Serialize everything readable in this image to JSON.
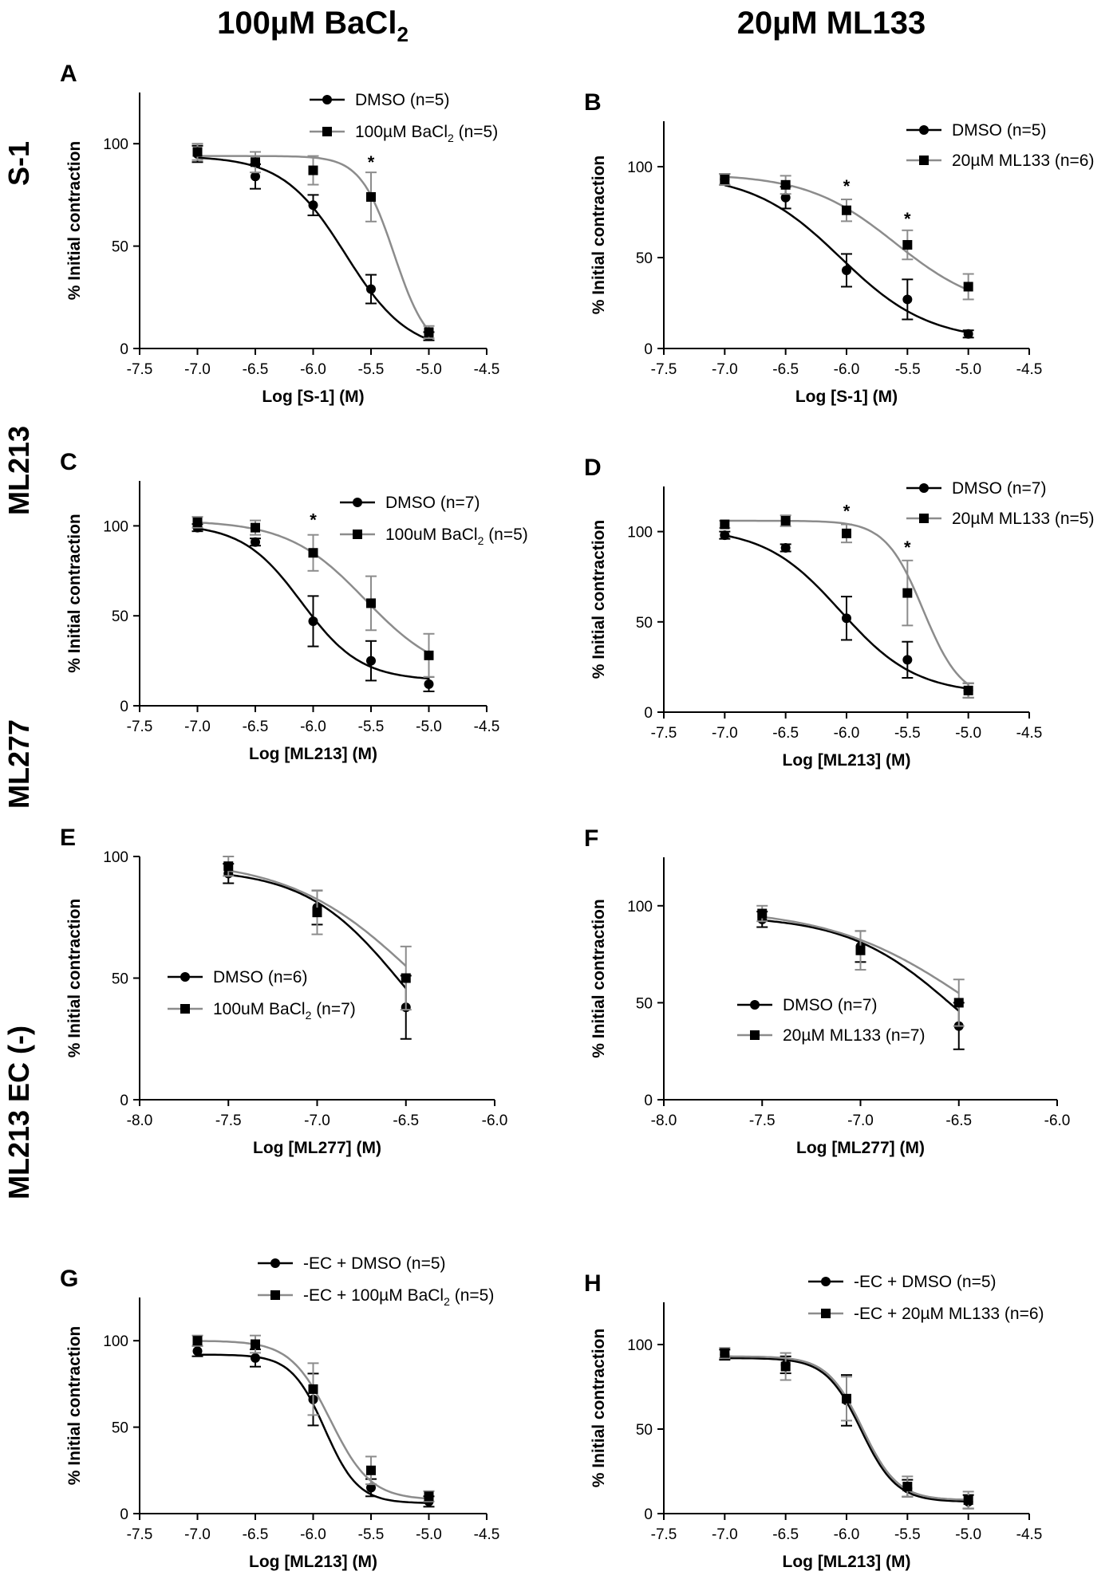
{
  "figure": {
    "col_headers": [
      {
        "text": "100µM BaCl",
        "sub": "2"
      },
      {
        "text": "20µM ML133",
        "sub": ""
      }
    ],
    "row_labels": [
      "S-1",
      "ML213",
      "ML277",
      "ML213 EC (-)"
    ],
    "colors": {
      "dmso": "#000000",
      "treat": "#8c8c8c"
    }
  },
  "chart_data": [
    {
      "panel": "A",
      "type": "line",
      "xlabel": "Log [S-1] (M)",
      "ylabel": "% Initial contraction",
      "xlim": [
        -7.5,
        -4.5
      ],
      "ylim": [
        0,
        125
      ],
      "xticks": [
        "-7.5",
        "-7.0",
        "-6.5",
        "-6.0",
        "-5.5",
        "-5.0",
        "-4.5"
      ],
      "yticks": [
        "0",
        "50",
        "100"
      ],
      "legend_position": "top-right",
      "series": [
        {
          "name": "DMSO (n=5)",
          "sub_at": null,
          "sub": "",
          "style": "dmso",
          "marker": "circle",
          "x": [
            -7.0,
            -6.5,
            -6.0,
            -5.5,
            -5.0
          ],
          "y": [
            95,
            84,
            70,
            29,
            6
          ],
          "err": [
            4,
            6,
            5,
            7,
            2
          ],
          "fit": {
            "top": 94,
            "bottom": -2,
            "logec50": -5.72,
            "hill": -1.6
          }
        },
        {
          "name": "100µM BaCl (n=5)",
          "sub_at": 10,
          "sub": "2",
          "style": "treat",
          "marker": "square",
          "x": [
            -7.0,
            -6.5,
            -6.0,
            -5.5,
            -5.0
          ],
          "y": [
            96,
            91,
            87,
            74,
            8
          ],
          "err": [
            4,
            5,
            7,
            12,
            3
          ],
          "fit": {
            "top": 94,
            "bottom": -2,
            "logec50": -5.3,
            "hill": -3.0
          }
        }
      ],
      "annotations": [
        {
          "x": -5.5,
          "y": 88,
          "text": "*"
        }
      ]
    },
    {
      "panel": "B",
      "type": "line",
      "xlabel": "Log [S-1] (M)",
      "ylabel": "% Initial contraction",
      "xlim": [
        -7.5,
        -4.5
      ],
      "ylim": [
        0,
        125
      ],
      "xticks": [
        "-7.5",
        "-7.0",
        "-6.5",
        "-6.0",
        "-5.5",
        "-5.0",
        "-4.5"
      ],
      "yticks": [
        "0",
        "50",
        "100"
      ],
      "legend_position": "top-right",
      "series": [
        {
          "name": "DMSO (n=5)",
          "sub_at": null,
          "sub": "",
          "style": "dmso",
          "marker": "circle",
          "x": [
            -7.0,
            -6.5,
            -6.0,
            -5.5,
            -5.0
          ],
          "y": [
            93,
            83,
            43,
            27,
            8
          ],
          "err": [
            3,
            6,
            9,
            11,
            2
          ],
          "fit": {
            "top": 96,
            "bottom": 4,
            "logec50": -6.05,
            "hill": -1.2
          }
        },
        {
          "name": "20µM ML133 (n=6)",
          "sub_at": null,
          "sub": "",
          "style": "treat",
          "marker": "square",
          "x": [
            -7.0,
            -6.5,
            -6.0,
            -5.5,
            -5.0
          ],
          "y": [
            93,
            90,
            76,
            57,
            34
          ],
          "err": [
            3,
            5,
            6,
            8,
            7
          ],
          "fit": {
            "top": 96,
            "bottom": 20,
            "logec50": -5.6,
            "hill": -1.2
          }
        }
      ],
      "annotations": [
        {
          "x": -6.0,
          "y": 86,
          "text": "*"
        },
        {
          "x": -5.5,
          "y": 68,
          "text": "*"
        }
      ]
    },
    {
      "panel": "C",
      "type": "line",
      "xlabel": "Log [ML213] (M)",
      "ylabel": "% Initial contraction",
      "xlim": [
        -7.5,
        -4.5
      ],
      "ylim": [
        0,
        125
      ],
      "xticks": [
        "-7.5",
        "-7.0",
        "-6.5",
        "-6.0",
        "-5.5",
        "-5.0",
        "-4.5"
      ],
      "yticks": [
        "0",
        "50",
        "100"
      ],
      "legend_position": "top-right",
      "series": [
        {
          "name": "DMSO (n=7)",
          "sub_at": null,
          "sub": "",
          "style": "dmso",
          "marker": "circle",
          "x": [
            -7.0,
            -6.5,
            -6.0,
            -5.5,
            -5.0
          ],
          "y": [
            99,
            91,
            47,
            25,
            12
          ],
          "err": [
            2,
            2,
            14,
            11,
            4
          ],
          "fit": {
            "top": 101,
            "bottom": 14,
            "logec50": -6.1,
            "hill": -1.7
          }
        },
        {
          "name": "100uM BaCl (n=5)",
          "sub_at": 10,
          "sub": "2",
          "style": "treat",
          "marker": "square",
          "x": [
            -7.0,
            -6.5,
            -6.0,
            -5.5,
            -5.0
          ],
          "y": [
            102,
            99,
            85,
            57,
            28
          ],
          "err": [
            3,
            4,
            10,
            15,
            12
          ],
          "fit": {
            "top": 103,
            "bottom": 15,
            "logec50": -5.55,
            "hill": -1.3
          }
        }
      ],
      "annotations": [
        {
          "x": -6.0,
          "y": 100,
          "text": "*"
        }
      ]
    },
    {
      "panel": "D",
      "type": "line",
      "xlabel": "Log [ML213] (M)",
      "ylabel": "% Initial contraction",
      "xlim": [
        -7.5,
        -4.5
      ],
      "ylim": [
        0,
        125
      ],
      "xticks": [
        "-7.5",
        "-7.0",
        "-6.5",
        "-6.0",
        "-5.5",
        "-5.0",
        "-4.5"
      ],
      "yticks": [
        "0",
        "50",
        "100"
      ],
      "legend_position": "top-right",
      "series": [
        {
          "name": "DMSO (n=7)",
          "sub_at": null,
          "sub": "",
          "style": "dmso",
          "marker": "circle",
          "x": [
            -7.0,
            -6.5,
            -6.0,
            -5.5,
            -5.0
          ],
          "y": [
            98,
            91,
            52,
            29,
            12
          ],
          "err": [
            2,
            2,
            12,
            10,
            4
          ],
          "fit": {
            "top": 102,
            "bottom": 10,
            "logec50": -6.05,
            "hill": -1.4
          }
        },
        {
          "name": "20µM ML133 (n=5)",
          "sub_at": null,
          "sub": "",
          "style": "treat",
          "marker": "square",
          "x": [
            -7.0,
            -6.5,
            -6.0,
            -5.5,
            -5.0
          ],
          "y": [
            104,
            106,
            99,
            66,
            12
          ],
          "err": [
            2,
            3,
            5,
            18,
            4
          ],
          "fit": {
            "top": 106,
            "bottom": 7,
            "logec50": -5.37,
            "hill": -2.8
          }
        }
      ],
      "annotations": [
        {
          "x": -6.0,
          "y": 108,
          "text": "*"
        },
        {
          "x": -5.5,
          "y": 88,
          "text": "*"
        }
      ]
    },
    {
      "panel": "E",
      "type": "line",
      "xlabel": "Log [ML277] (M)",
      "ylabel": "% Initial contraction",
      "xlim": [
        -8.0,
        -6.0
      ],
      "ylim": [
        0,
        100
      ],
      "xticks": [
        "-8.0",
        "-7.5",
        "-7.0",
        "-6.5",
        "-6.0"
      ],
      "yticks": [
        "0",
        "50",
        "100"
      ],
      "legend_position": "bottom-left",
      "series": [
        {
          "name": "DMSO (n=6)",
          "sub_at": null,
          "sub": "",
          "style": "dmso",
          "marker": "circle",
          "x": [
            -7.5,
            -7.0,
            -6.5
          ],
          "y": [
            93,
            79,
            38
          ],
          "err": [
            4,
            7,
            13
          ],
          "fit": {
            "top": 95,
            "bottom": 0,
            "logec50": -6.52,
            "hill": -1.6
          }
        },
        {
          "name": "100uM BaCl (n=7)",
          "sub_at": 10,
          "sub": "2",
          "style": "treat",
          "marker": "square",
          "x": [
            -7.5,
            -7.0,
            -6.5
          ],
          "y": [
            96,
            77,
            50
          ],
          "err": [
            4,
            9,
            13
          ],
          "fit": {
            "top": 99,
            "bottom": 0,
            "logec50": -6.42,
            "hill": -1.2
          }
        }
      ],
      "annotations": []
    },
    {
      "panel": "F",
      "type": "line",
      "xlabel": "Log [ML277] (M)",
      "ylabel": "% Initial contraction",
      "xlim": [
        -8.0,
        -6.0
      ],
      "ylim": [
        0,
        125
      ],
      "xticks": [
        "-8.0",
        "-7.5",
        "-7.0",
        "-6.5",
        "-6.0"
      ],
      "yticks": [
        "0",
        "50",
        "100"
      ],
      "legend_position": "bottom-left",
      "series": [
        {
          "name": "DMSO (n=7)",
          "sub_at": null,
          "sub": "",
          "style": "dmso",
          "marker": "circle",
          "x": [
            -7.5,
            -7.0,
            -6.5
          ],
          "y": [
            93,
            79,
            38
          ],
          "err": [
            4,
            8,
            12
          ],
          "fit": {
            "top": 95,
            "bottom": 0,
            "logec50": -6.52,
            "hill": -1.6
          }
        },
        {
          "name": "20µM ML133 (n=7)",
          "sub_at": null,
          "sub": "",
          "style": "treat",
          "marker": "square",
          "x": [
            -7.5,
            -7.0,
            -6.5
          ],
          "y": [
            96,
            77,
            50
          ],
          "err": [
            4,
            10,
            12
          ],
          "fit": {
            "top": 99,
            "bottom": 0,
            "logec50": -6.42,
            "hill": -1.2
          }
        }
      ],
      "annotations": []
    },
    {
      "panel": "G",
      "type": "line",
      "xlabel": "Log [ML213] (M)",
      "ylabel": "% Initial contraction",
      "xlim": [
        -7.5,
        -4.5
      ],
      "ylim": [
        0,
        125
      ],
      "xticks": [
        "-7.5",
        "-7.0",
        "-6.5",
        "-6.0",
        "-5.5",
        "-5.0",
        "-4.5"
      ],
      "yticks": [
        "0",
        "50",
        "100"
      ],
      "legend_position": "top-right",
      "series": [
        {
          "name": "-EC + DMSO (n=5)",
          "sub_at": null,
          "sub": "",
          "style": "dmso",
          "marker": "circle",
          "x": [
            -7.0,
            -6.5,
            -6.0,
            -5.5,
            -5.0
          ],
          "y": [
            94,
            90,
            66,
            15,
            7
          ],
          "err": [
            3,
            5,
            15,
            5,
            3
          ],
          "fit": {
            "top": 92,
            "bottom": 6,
            "logec50": -5.9,
            "hill": -3.0
          }
        },
        {
          "name": "-EC + 100µM BaCl (n=5)",
          "sub_at": 16,
          "sub": "2",
          "style": "treat",
          "marker": "square",
          "x": [
            -7.0,
            -6.5,
            -6.0,
            -5.5,
            -5.0
          ],
          "y": [
            100,
            98,
            72,
            25,
            10
          ],
          "err": [
            3,
            5,
            15,
            8,
            3
          ],
          "fit": {
            "top": 100,
            "bottom": 8,
            "logec50": -5.85,
            "hill": -2.5
          }
        }
      ],
      "annotations": []
    },
    {
      "panel": "H",
      "type": "line",
      "xlabel": "Log [ML213] (M)",
      "ylabel": "% Initial contraction",
      "xlim": [
        -7.5,
        -4.5
      ],
      "ylim": [
        0,
        125
      ],
      "xticks": [
        "-7.5",
        "-7.0",
        "-6.5",
        "-6.0",
        "-5.5",
        "-5.0",
        "-4.5"
      ],
      "yticks": [
        "0",
        "50",
        "100"
      ],
      "legend_position": "top-right",
      "series": [
        {
          "name": "-EC + DMSO (n=5)",
          "sub_at": null,
          "sub": "",
          "style": "dmso",
          "marker": "circle",
          "x": [
            -7.0,
            -6.5,
            -6.0,
            -5.5,
            -5.0
          ],
          "y": [
            94,
            88,
            67,
            15,
            7
          ],
          "err": [
            3,
            5,
            15,
            5,
            4
          ],
          "fit": {
            "top": 92,
            "bottom": 7,
            "logec50": -5.88,
            "hill": -3.0
          }
        },
        {
          "name": "-EC + 20µM ML133 (n=6)",
          "sub_at": null,
          "sub": "",
          "style": "treat",
          "marker": "square",
          "x": [
            -7.0,
            -6.5,
            -6.0,
            -5.5,
            -5.0
          ],
          "y": [
            95,
            87,
            68,
            16,
            8
          ],
          "err": [
            3,
            8,
            13,
            6,
            5
          ],
          "fit": {
            "top": 93,
            "bottom": 8,
            "logec50": -5.87,
            "hill": -3.0
          }
        }
      ],
      "annotations": []
    }
  ]
}
